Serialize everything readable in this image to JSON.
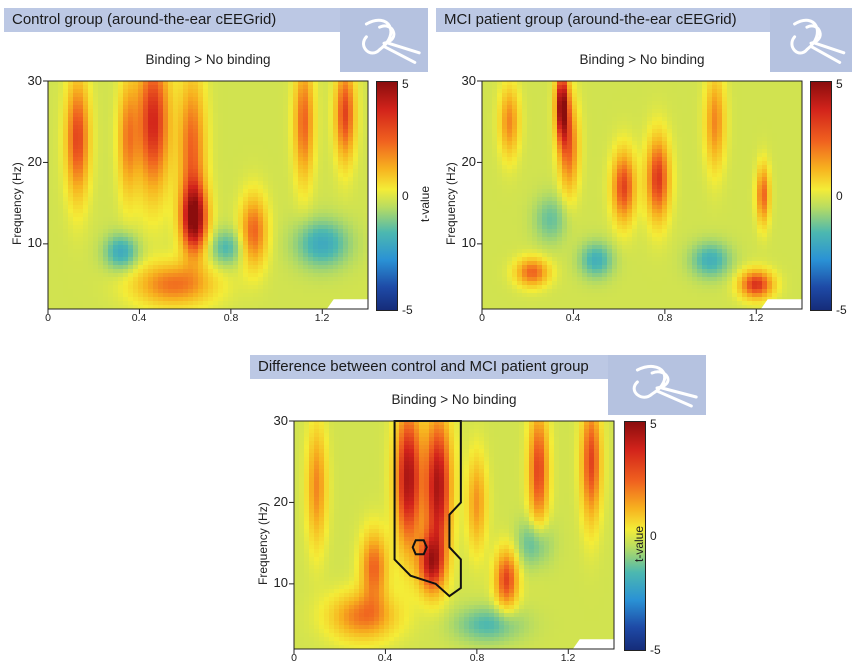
{
  "panels": [
    {
      "title": "Control group (around-the-ear cEEGrid)",
      "subtitle": "Binding > No binding"
    },
    {
      "title": "MCI patient group (around-the-ear cEEGrid)",
      "subtitle": "Binding > No binding"
    },
    {
      "title": "Difference between control and MCI patient group",
      "subtitle": "Binding > No binding"
    }
  ],
  "colorbar": {
    "label": "t-value",
    "max": "5",
    "mid": "0",
    "min": "-5"
  },
  "logo_icon": "ceegrid-ear-icon",
  "chart_data": [
    {
      "type": "heatmap",
      "title": "Control group (around-the-ear cEEGrid)",
      "subtitle": "Binding > No binding",
      "xlabel": "",
      "ylabel": "Frequency (Hz)",
      "xlim": [
        0,
        1.4
      ],
      "ylim": [
        2,
        30
      ],
      "xticks": [
        "0",
        "0.4",
        "0.8",
        "1.2"
      ],
      "yticks": [
        "10",
        "20",
        "30"
      ],
      "clim": [
        -5,
        5
      ],
      "colorbar_label": "t-value",
      "blobs": [
        {
          "x": 0.13,
          "y": 23,
          "sx": 0.035,
          "sy": 5,
          "v": 3
        },
        {
          "x": 0.46,
          "y": 25,
          "sx": 0.05,
          "sy": 6,
          "v": 3.5
        },
        {
          "x": 0.64,
          "y": 13,
          "sx": 0.04,
          "sy": 3,
          "v": 4.5
        },
        {
          "x": 0.63,
          "y": 22,
          "sx": 0.04,
          "sy": 6,
          "v": 2.5
        },
        {
          "x": 0.9,
          "y": 11.5,
          "sx": 0.04,
          "sy": 3,
          "v": 2.5
        },
        {
          "x": 1.12,
          "y": 25,
          "sx": 0.03,
          "sy": 5,
          "v": 2.5
        },
        {
          "x": 1.3,
          "y": 26,
          "sx": 0.03,
          "sy": 4,
          "v": 3
        },
        {
          "x": 0.55,
          "y": 5,
          "sx": 0.12,
          "sy": 1.8,
          "v": 2.3
        },
        {
          "x": 0.35,
          "y": 23,
          "sx": 0.03,
          "sy": 5,
          "v": 2
        },
        {
          "x": 0.32,
          "y": 9,
          "sx": 0.05,
          "sy": 1.5,
          "v": -2
        },
        {
          "x": 0.78,
          "y": 9.5,
          "sx": 0.05,
          "sy": 1.5,
          "v": -1.5
        },
        {
          "x": 1.2,
          "y": 10,
          "sx": 0.08,
          "sy": 2,
          "v": -2
        }
      ]
    },
    {
      "type": "heatmap",
      "title": "MCI patient group (around-the-ear cEEGrid)",
      "subtitle": "Binding > No binding",
      "xlabel": "",
      "ylabel": "Frequency (Hz)",
      "xlim": [
        0,
        1.4
      ],
      "ylim": [
        2,
        30
      ],
      "xticks": [
        "0",
        "0.4",
        "0.8",
        "1.2"
      ],
      "yticks": [
        "10",
        "20",
        "30"
      ],
      "clim": [
        -5,
        5
      ],
      "colorbar_label": "t-value",
      "blobs": [
        {
          "x": 0.35,
          "y": 27,
          "sx": 0.02,
          "sy": 3,
          "v": 4.5
        },
        {
          "x": 0.38,
          "y": 22,
          "sx": 0.03,
          "sy": 4,
          "v": 2.5
        },
        {
          "x": 0.62,
          "y": 17,
          "sx": 0.035,
          "sy": 3,
          "v": 3
        },
        {
          "x": 0.77,
          "y": 18,
          "sx": 0.035,
          "sy": 3.5,
          "v": 3.2
        },
        {
          "x": 1.2,
          "y": 5,
          "sx": 0.05,
          "sy": 1.2,
          "v": 3.3
        },
        {
          "x": 1.23,
          "y": 16,
          "sx": 0.02,
          "sy": 2.5,
          "v": 2.5
        },
        {
          "x": 0.22,
          "y": 6.5,
          "sx": 0.05,
          "sy": 1.2,
          "v": 2.5
        },
        {
          "x": 0.12,
          "y": 25,
          "sx": 0.03,
          "sy": 3,
          "v": 2
        },
        {
          "x": 1.02,
          "y": 25,
          "sx": 0.03,
          "sy": 4,
          "v": 2
        },
        {
          "x": 0.5,
          "y": 8,
          "sx": 0.05,
          "sy": 1.5,
          "v": -1.8
        },
        {
          "x": 1.0,
          "y": 8,
          "sx": 0.06,
          "sy": 1.5,
          "v": -1.8
        },
        {
          "x": 0.3,
          "y": 13,
          "sx": 0.05,
          "sy": 2,
          "v": -1.2
        }
      ]
    },
    {
      "type": "heatmap",
      "title": "Difference between control and MCI patient group",
      "subtitle": "Binding > No binding",
      "xlabel": "",
      "ylabel": "Frequency (Hz)",
      "xlim": [
        0,
        1.4
      ],
      "ylim": [
        2,
        30
      ],
      "xticks": [
        "0",
        "0.4",
        "0.8",
        "1.2"
      ],
      "yticks": [
        "10",
        "20",
        "30"
      ],
      "clim": [
        -5,
        5
      ],
      "colorbar_label": "t-value",
      "significance_contour": [
        [
          0.44,
          30
        ],
        [
          0.73,
          30
        ],
        [
          0.73,
          20
        ],
        [
          0.68,
          18.5
        ],
        [
          0.68,
          14.5
        ],
        [
          0.73,
          13
        ],
        [
          0.73,
          9.5
        ],
        [
          0.68,
          8.5
        ],
        [
          0.62,
          10
        ],
        [
          0.51,
          11
        ],
        [
          0.44,
          13
        ],
        [
          0.44,
          18.5
        ]
      ],
      "inner_contour_center": [
        0.55,
        14.5
      ],
      "blobs": [
        {
          "x": 0.5,
          "y": 23,
          "sx": 0.04,
          "sy": 6,
          "v": 4.2
        },
        {
          "x": 0.63,
          "y": 22,
          "sx": 0.04,
          "sy": 6,
          "v": 4.2
        },
        {
          "x": 0.6,
          "y": 12.5,
          "sx": 0.04,
          "sy": 2.5,
          "v": 3.5
        },
        {
          "x": 0.93,
          "y": 10.5,
          "sx": 0.035,
          "sy": 2.5,
          "v": 3
        },
        {
          "x": 1.07,
          "y": 24,
          "sx": 0.03,
          "sy": 5,
          "v": 3
        },
        {
          "x": 1.3,
          "y": 25,
          "sx": 0.03,
          "sy": 5,
          "v": 3
        },
        {
          "x": 0.35,
          "y": 12,
          "sx": 0.04,
          "sy": 3,
          "v": 2.5
        },
        {
          "x": 0.3,
          "y": 6,
          "sx": 0.1,
          "sy": 2,
          "v": 2.2
        },
        {
          "x": 0.1,
          "y": 22,
          "sx": 0.03,
          "sy": 5,
          "v": 2
        },
        {
          "x": 0.8,
          "y": 20,
          "sx": 0.03,
          "sy": 4,
          "v": 1.8
        },
        {
          "x": 1.05,
          "y": 15,
          "sx": 0.05,
          "sy": 2,
          "v": -1.5
        },
        {
          "x": 0.85,
          "y": 5,
          "sx": 0.1,
          "sy": 1.5,
          "v": -1.5
        }
      ]
    }
  ]
}
